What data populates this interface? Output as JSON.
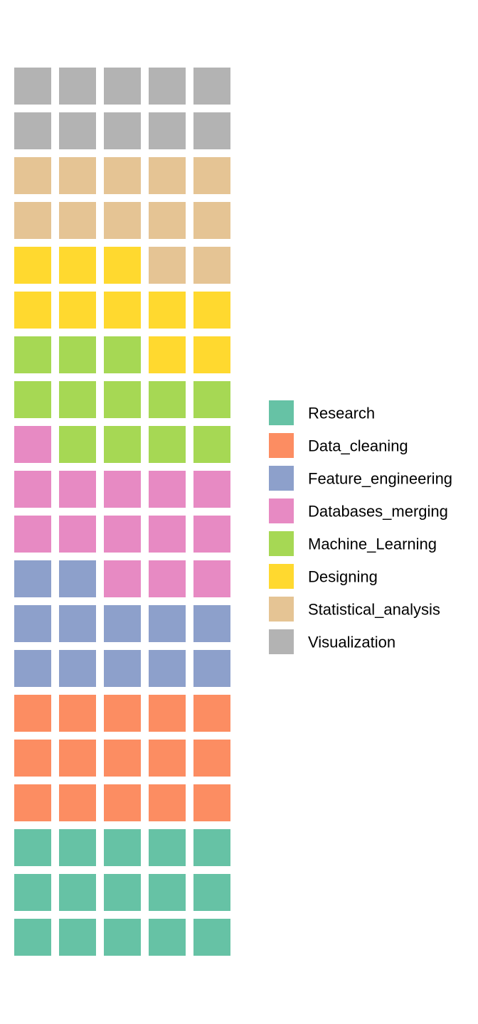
{
  "chart_data": {
    "type": "waffle",
    "title": "",
    "subtitle": "",
    "columns": 5,
    "fill_order": "bottom-to-top, left-to-right",
    "series": [
      {
        "name": "Research",
        "value": 15,
        "color": "#66C2A5"
      },
      {
        "name": "Data_cleaning",
        "value": 15,
        "color": "#FC8D62"
      },
      {
        "name": "Feature_engineering",
        "value": 12,
        "color": "#8DA0CB"
      },
      {
        "name": "Databases_merging",
        "value": 14,
        "color": "#E78AC3"
      },
      {
        "name": "Machine_Learning",
        "value": 12,
        "color": "#A6D854"
      },
      {
        "name": "Designing",
        "value": 10,
        "color": "#FFD92F"
      },
      {
        "name": "Statistical_analysis",
        "value": 12,
        "color": "#E5C494"
      },
      {
        "name": "Visualization",
        "value": 10,
        "color": "#B3B3B3"
      }
    ],
    "legend_position": "right"
  }
}
